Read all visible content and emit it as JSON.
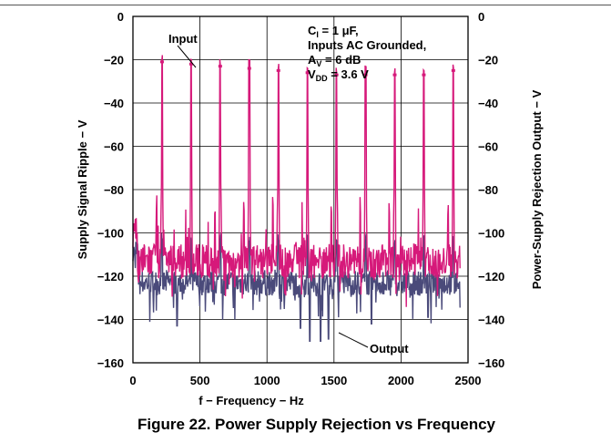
{
  "caption": "Figure 22. Power Supply Rejection vs Frequency",
  "chart_data": {
    "type": "line",
    "xlabel": "f − Frequency − Hz",
    "ylabel_left": "Supply Signal Ripple − V",
    "ylabel_right": "Power-Supply Rejection Output − V",
    "xlim": [
      0,
      2500
    ],
    "ylim": [
      -160,
      0
    ],
    "x_ticks": [
      "0",
      "500",
      "1000",
      "1500",
      "2000",
      "2500"
    ],
    "y_ticks": [
      "0",
      "−20",
      "−40",
      "−60",
      "−80",
      "−100",
      "−120",
      "−140",
      "−160"
    ],
    "grid": true,
    "conditions": [
      "C",
      "I",
      " = 1 μF,",
      "Inputs AC Grounded,",
      "A",
      "V",
      " = 6 dB",
      "V",
      "DD",
      " = 3.6 V"
    ],
    "annotations": {
      "input": "Input",
      "output": "Output"
    },
    "colors": {
      "input": "#d6197a",
      "output": "#4a4a7a"
    },
    "series": [
      {
        "name": "Input",
        "spikes": [
          {
            "x": 217,
            "y": -21
          },
          {
            "x": 434,
            "y": -22
          },
          {
            "x": 651,
            "y": -23
          },
          {
            "x": 868,
            "y": -24
          },
          {
            "x": 1085,
            "y": -25
          },
          {
            "x": 1302,
            "y": -26
          },
          {
            "x": 1519,
            "y": -27
          },
          {
            "x": 1736,
            "y": -27
          },
          {
            "x": 1953,
            "y": -27
          },
          {
            "x": 2170,
            "y": -27
          },
          {
            "x": 2390,
            "y": -25
          }
        ],
        "noise_floor": -113
      },
      {
        "name": "Output",
        "noise_floor": -123,
        "dips": [
          {
            "x": 330,
            "y": -143
          },
          {
            "x": 760,
            "y": -140
          },
          {
            "x": 1250,
            "y": -144
          },
          {
            "x": 1320,
            "y": -150
          },
          {
            "x": 1400,
            "y": -150
          },
          {
            "x": 1460,
            "y": -149
          },
          {
            "x": 1780,
            "y": -142
          },
          {
            "x": 2200,
            "y": -139
          }
        ]
      }
    ]
  }
}
